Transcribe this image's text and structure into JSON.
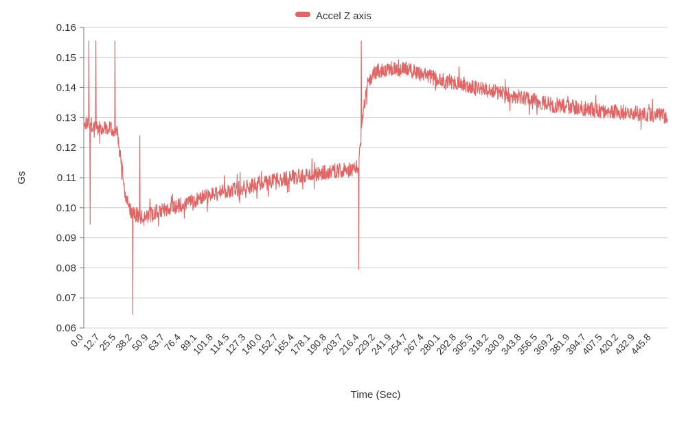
{
  "chart_data": {
    "type": "line",
    "title": "",
    "legend": {
      "position": "top-center",
      "entries": [
        {
          "label": "Accel Z axis",
          "color": "#e06666"
        }
      ]
    },
    "xlabel": "Time (Sec)",
    "ylabel": "Gs",
    "ylim": [
      0.06,
      0.16
    ],
    "yticks": [
      "0.06",
      "0.07",
      "0.08",
      "0.09",
      "0.10",
      "0.11",
      "0.12",
      "0.13",
      "0.14",
      "0.15",
      "0.16"
    ],
    "xtick_labels": [
      "0.0",
      "12.7",
      "25.5",
      "38.2",
      "50.9",
      "63.7",
      "76.4",
      "89.1",
      "101.8",
      "114.5",
      "127.3",
      "140.0",
      "152.7",
      "165.4",
      "178.1",
      "190.8",
      "203.7",
      "216.4",
      "229.2",
      "241.9",
      "254.7",
      "267.4",
      "280.1",
      "292.8",
      "305.5",
      "318.2",
      "330.9",
      "343.8",
      "356.5",
      "369.2",
      "381.9",
      "394.7",
      "407.5",
      "420.2",
      "432.9",
      "445.8"
    ],
    "x_domain": [
      0,
      458.5
    ],
    "grid": "horizontal",
    "series": [
      {
        "name": "Accel Z axis",
        "color": "#e06666",
        "noise_amplitude": 0.0025,
        "sample_step": 0.25,
        "trend": [
          [
            0,
            0.1275
          ],
          [
            3,
            0.1285
          ],
          [
            8,
            0.127
          ],
          [
            14,
            0.1265
          ],
          [
            20,
            0.127
          ],
          [
            26,
            0.1255
          ],
          [
            29,
            0.116
          ],
          [
            33,
            0.103
          ],
          [
            37,
            0.0985
          ],
          [
            42,
            0.0975
          ],
          [
            48,
            0.0965
          ],
          [
            55,
            0.0985
          ],
          [
            65,
            0.0995
          ],
          [
            80,
            0.1015
          ],
          [
            95,
            0.1035
          ],
          [
            110,
            0.1055
          ],
          [
            125,
            0.1065
          ],
          [
            140,
            0.108
          ],
          [
            155,
            0.1095
          ],
          [
            170,
            0.1105
          ],
          [
            185,
            0.1115
          ],
          [
            200,
            0.1125
          ],
          [
            212,
            0.1125
          ],
          [
            216,
            0.114
          ],
          [
            219,
            0.131
          ],
          [
            223,
            0.1415
          ],
          [
            228,
            0.145
          ],
          [
            235,
            0.146
          ],
          [
            245,
            0.1465
          ],
          [
            255,
            0.146
          ],
          [
            265,
            0.1445
          ],
          [
            280,
            0.1425
          ],
          [
            295,
            0.1415
          ],
          [
            310,
            0.14
          ],
          [
            325,
            0.1385
          ],
          [
            340,
            0.137
          ],
          [
            355,
            0.1355
          ],
          [
            370,
            0.134
          ],
          [
            385,
            0.1335
          ],
          [
            400,
            0.1325
          ],
          [
            415,
            0.132
          ],
          [
            430,
            0.1315
          ],
          [
            445,
            0.131
          ],
          [
            458.5,
            0.1305
          ]
        ],
        "spikes": [
          [
            4.0,
            0.1555
          ],
          [
            5.0,
            0.0945
          ],
          [
            9.5,
            0.1555
          ],
          [
            24.5,
            0.1555
          ],
          [
            38.5,
            0.0645
          ],
          [
            44.0,
            0.124
          ],
          [
            216.0,
            0.0795
          ],
          [
            218.0,
            0.1555
          ]
        ]
      }
    ]
  },
  "colors": {
    "background": "#ffffff",
    "grid": "#cccccc",
    "axis": "#757575",
    "text": "#333333",
    "series": "#e06666"
  }
}
